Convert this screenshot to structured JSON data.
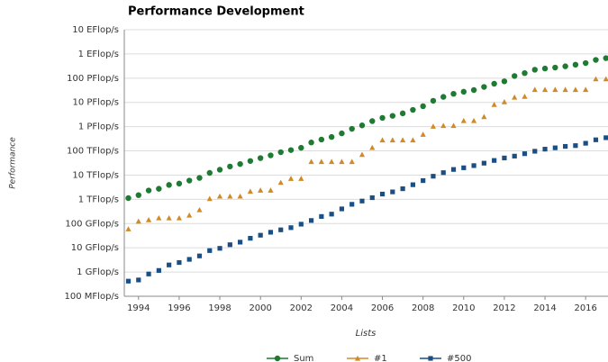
{
  "chart_data": {
    "type": "scatter",
    "title": "Performance Development",
    "y_label": "Performance",
    "x_label": "Lists",
    "log_y": true,
    "grid": true,
    "legend": "bottom",
    "xlim": [
      1993.3,
      2017.1
    ],
    "xticks": [
      1994,
      1996,
      1998,
      2000,
      2002,
      2004,
      2006,
      2008,
      2010,
      2012,
      2014,
      2016
    ],
    "ylim": [
      0.1,
      10000000000
    ],
    "yticks": [
      {
        "value": 0.1,
        "label": "100 MFlop/s"
      },
      {
        "value": 1,
        "label": "1 GFlop/s"
      },
      {
        "value": 10,
        "label": "10 GFlop/s"
      },
      {
        "value": 100,
        "label": "100 GFlop/s"
      },
      {
        "value": 1000,
        "label": "1 TFlop/s"
      },
      {
        "value": 10000,
        "label": "10 TFlop/s"
      },
      {
        "value": 100000,
        "label": "100 TFlop/s"
      },
      {
        "value": 1000000,
        "label": "1 PFlop/s"
      },
      {
        "value": 10000000,
        "label": "10 PFlop/s"
      },
      {
        "value": 100000000,
        "label": "100 PFlop/s"
      },
      {
        "value": 1000000000,
        "label": "1 EFlop/s"
      },
      {
        "value": 10000000000,
        "label": "10 EFlop/s"
      }
    ],
    "x": [
      1993.5,
      1994,
      1994.5,
      1995,
      1995.5,
      1996,
      1996.5,
      1997,
      1997.5,
      1998,
      1998.5,
      1999,
      1999.5,
      2000,
      2000.5,
      2001,
      2001.5,
      2002,
      2002.5,
      2003,
      2003.5,
      2004,
      2004.5,
      2005,
      2005.5,
      2006,
      2006.5,
      2007,
      2007.5,
      2008,
      2008.5,
      2009,
      2009.5,
      2010,
      2010.5,
      2011,
      2011.5,
      2012,
      2012.5,
      2013,
      2013.5,
      2014,
      2014.5,
      2015,
      2015.5,
      2016,
      2016.5,
      2017
    ],
    "series": [
      {
        "name": "Sum",
        "color": "#1f7a32",
        "marker": "circle",
        "values": [
          1128,
          1493,
          2317,
          2732,
          3931,
          4470,
          5949,
          7665,
          12330,
          16700,
          22640,
          28600,
          38200,
          50400,
          65300,
          88100,
          108000,
          134000,
          222000,
          293000,
          375000,
          528000,
          813000,
          1127000,
          1690000,
          2300000,
          2790000,
          3540000,
          4920000,
          6970000,
          11700000,
          16900000,
          22600000,
          27600000,
          32400000,
          43600000,
          58900000,
          74200000,
          123000000,
          162000000,
          223000000,
          250000000,
          274000000,
          309000000,
          361000000,
          420000000,
          567000000,
          672000000
        ]
      },
      {
        "name": "#1",
        "color": "#d08a28",
        "marker": "triangle",
        "values": [
          59.7,
          124,
          143,
          170,
          170,
          170,
          220,
          368,
          1068,
          1338,
          1338,
          1338,
          2121,
          2379,
          2379,
          4938,
          7226,
          7226,
          35860,
          35860,
          35860,
          35860,
          35860,
          70720,
          136800,
          280600,
          280600,
          280600,
          280600,
          478200,
          1026000,
          1105000,
          1105000,
          1759000,
          1759000,
          2566000,
          8162000,
          10510000,
          16320000,
          17590000,
          33860000,
          33860000,
          33860000,
          33860000,
          33860000,
          33860000,
          93010000,
          93010000
        ]
      },
      {
        "name": "#500",
        "color": "#1a4f85",
        "marker": "square",
        "values": [
          0.42,
          0.47,
          0.83,
          1.16,
          1.96,
          2.47,
          3.33,
          4.62,
          7.67,
          9.51,
          13.4,
          17.1,
          24.7,
          33.1,
          43.8,
          55.1,
          67.8,
          94.3,
          134,
          196,
          245,
          403,
          624,
          851,
          1170,
          1650,
          2030,
          2740,
          4010,
          5930,
          9000,
          12640,
          17100,
          20050,
          24670,
          31120,
          40190,
          50940,
          60820,
          76500,
          96620,
          117800,
          133700,
          153400,
          164900,
          206300,
          286100,
          349300
        ]
      }
    ]
  }
}
